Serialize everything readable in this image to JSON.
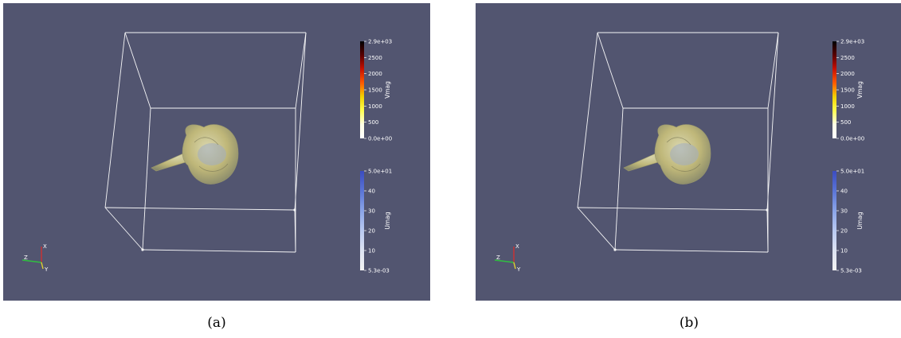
{
  "panels": [
    {
      "id": "a",
      "caption": "(a)",
      "colorbars": [
        {
          "title": "Vmag",
          "ticks": [
            "2.9e+03",
            "2500",
            "2000",
            "1500",
            "1000",
            "500",
            "0.0e+00"
          ],
          "colors": [
            "#000000",
            "#5a0000",
            "#c81000",
            "#ff5a00",
            "#f0d200",
            "#ffff50",
            "#ffffe6",
            "#ffffff"
          ]
        },
        {
          "title": "Umag",
          "ticks": [
            "5.0e+01",
            "40",
            "30",
            "20",
            "10",
            "5.3e-03"
          ],
          "colors": [
            "#3b4cc0",
            "#5a74d6",
            "#8aa4e8",
            "#b9c9f1",
            "#dde3f2",
            "#f2f2f2"
          ]
        }
      ],
      "axes": {
        "x": "X",
        "y": "Y",
        "z": "Z"
      }
    },
    {
      "id": "b",
      "caption": "(b)",
      "colorbars": [
        {
          "title": "Vmag",
          "ticks": [
            "2.9e+03",
            "2500",
            "2000",
            "1500",
            "1000",
            "500",
            "0.0e+00"
          ],
          "colors": [
            "#000000",
            "#5a0000",
            "#c81000",
            "#ff5a00",
            "#f0d200",
            "#ffff50",
            "#ffffe6",
            "#ffffff"
          ]
        },
        {
          "title": "Umag",
          "ticks": [
            "5.0e+01",
            "40",
            "30",
            "20",
            "10",
            "5.3e-03"
          ],
          "colors": [
            "#3b4cc0",
            "#5a74d6",
            "#8aa4e8",
            "#b9c9f1",
            "#dde3f2",
            "#f2f2f2"
          ]
        }
      ],
      "axes": {
        "x": "X",
        "y": "Y",
        "z": "Z"
      }
    }
  ],
  "background_color": "#525570",
  "outline_color": "#ffffff",
  "isosurface_color": "#c9c07a"
}
